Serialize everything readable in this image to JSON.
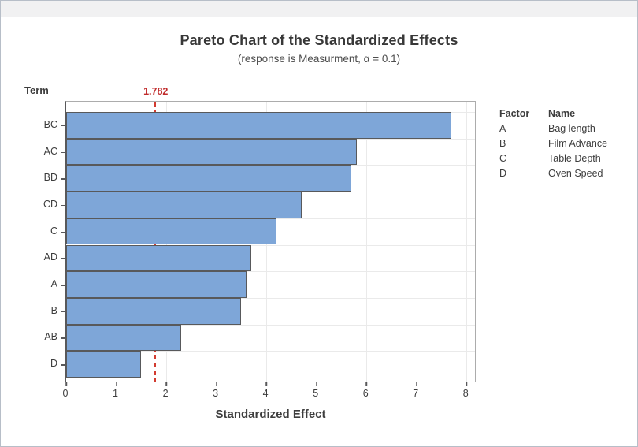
{
  "chart_data": {
    "type": "bar",
    "orientation": "horizontal",
    "title": "Pareto Chart of the Standardized Effects",
    "subtitle": "(response is Measurment, α = 0.1)",
    "xlabel": "Standardized Effect",
    "ylabel": "Term",
    "categories": [
      "BC",
      "AC",
      "BD",
      "CD",
      "C",
      "AD",
      "A",
      "B",
      "AB",
      "D"
    ],
    "values": [
      7.7,
      5.8,
      5.7,
      4.7,
      4.2,
      3.7,
      3.6,
      3.5,
      2.3,
      1.5
    ],
    "xlim": [
      0,
      8.2
    ],
    "xticks": [
      0,
      1,
      2,
      3,
      4,
      5,
      6,
      7,
      8
    ],
    "grid": true,
    "reference_line": {
      "value": 1.782,
      "label": "1.782",
      "style": "dashed"
    },
    "legend": {
      "position": "right",
      "headers": [
        "Factor",
        "Name"
      ],
      "rows": [
        [
          "A",
          "Bag length"
        ],
        [
          "B",
          "Film Advance"
        ],
        [
          "C",
          "Table Depth"
        ],
        [
          "D",
          "Oven Speed"
        ]
      ]
    },
    "colors": {
      "bar_fill": "#7EA6D8",
      "bar_border": "#58595B",
      "reference_line": "#D23B30",
      "reference_label": "#C02B2B",
      "grid": "#EAEAEA",
      "axis": "#58585A",
      "frame": "#ACACAC",
      "frame_outer": "#B7BEC8",
      "title": "#383838",
      "text": "#3D3D3D"
    }
  }
}
